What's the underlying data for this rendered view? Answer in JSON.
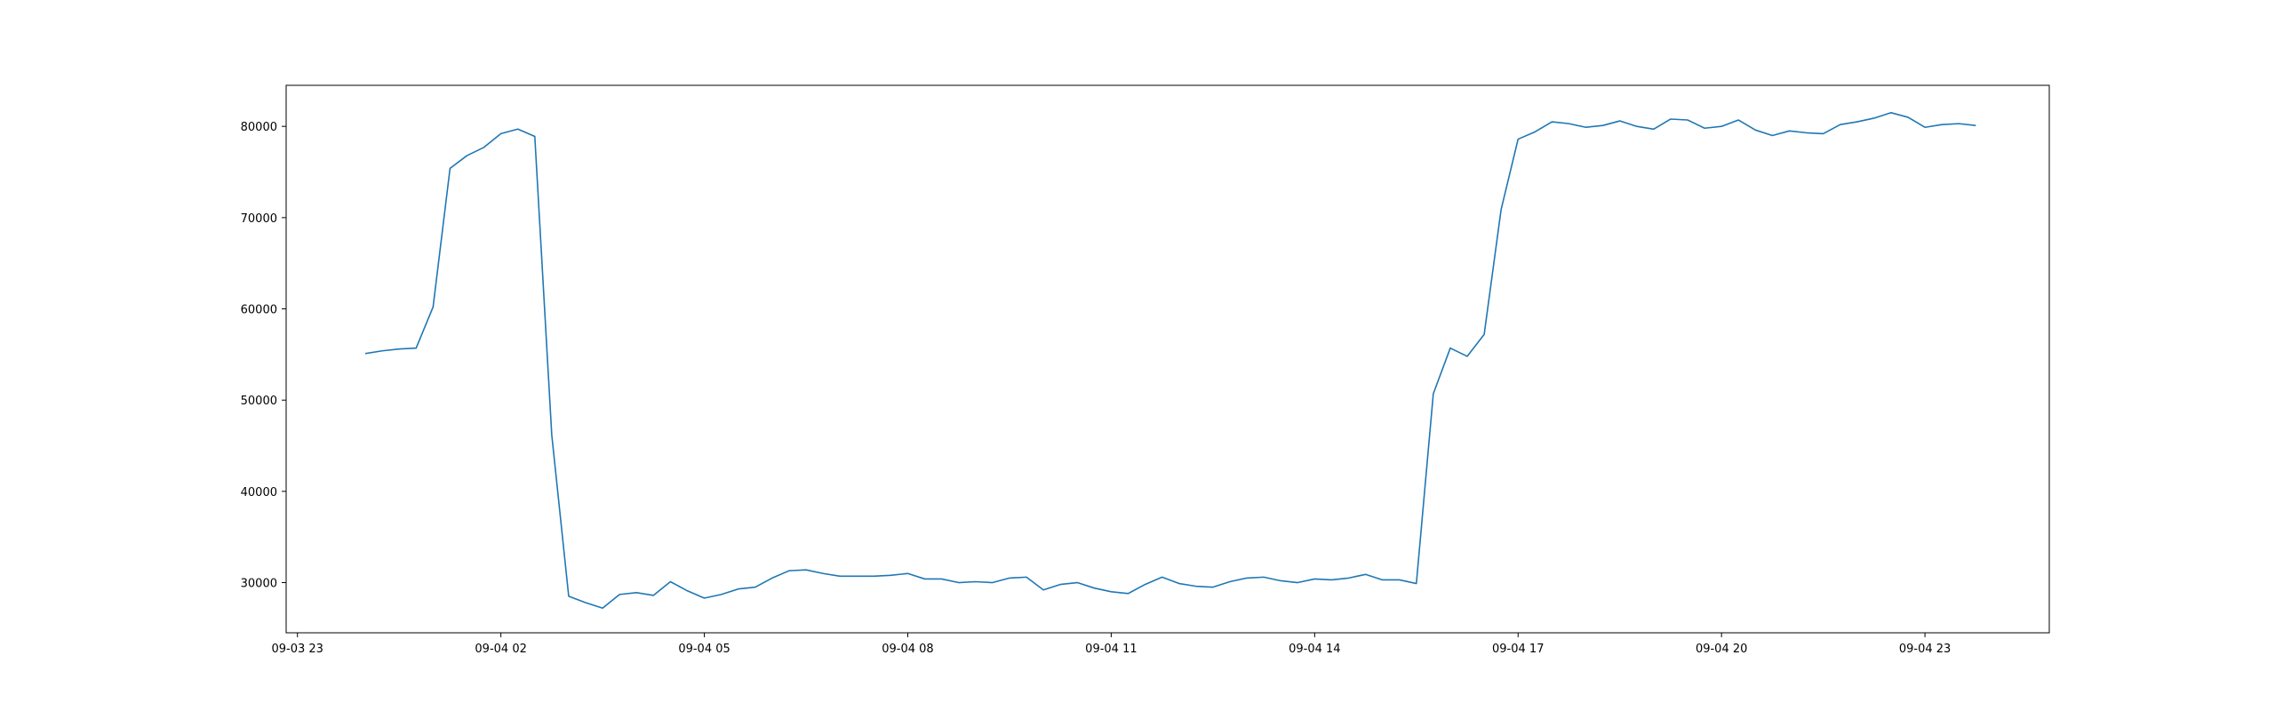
{
  "chart_data": {
    "type": "line",
    "title": "",
    "xlabel": "",
    "ylabel": "",
    "grid": false,
    "legend": "none",
    "x_ticks": [
      "09-03 23",
      "09-04 02",
      "09-04 05",
      "09-04 08",
      "09-04 11",
      "09-04 14",
      "09-04 17",
      "09-04 20",
      "09-04 23"
    ],
    "y_ticks": [
      30000,
      40000,
      50000,
      60000,
      70000,
      80000
    ],
    "xlim": [
      "2023-09-03 22:50",
      "2023-09-05 00:50"
    ],
    "ylim": [
      24500,
      84500
    ],
    "series": [
      {
        "color": "#1f77b4",
        "x": [
          "2023-09-04 00:00",
          "2023-09-04 00:15",
          "2023-09-04 00:30",
          "2023-09-04 00:45",
          "2023-09-04 01:00",
          "2023-09-04 01:15",
          "2023-09-04 01:30",
          "2023-09-04 01:45",
          "2023-09-04 02:00",
          "2023-09-04 02:15",
          "2023-09-04 02:30",
          "2023-09-04 02:45",
          "2023-09-04 03:00",
          "2023-09-04 03:15",
          "2023-09-04 03:30",
          "2023-09-04 03:45",
          "2023-09-04 04:00",
          "2023-09-04 04:15",
          "2023-09-04 04:30",
          "2023-09-04 04:45",
          "2023-09-04 05:00",
          "2023-09-04 05:15",
          "2023-09-04 05:30",
          "2023-09-04 05:45",
          "2023-09-04 06:00",
          "2023-09-04 06:15",
          "2023-09-04 06:30",
          "2023-09-04 06:45",
          "2023-09-04 07:00",
          "2023-09-04 07:15",
          "2023-09-04 07:30",
          "2023-09-04 07:45",
          "2023-09-04 08:00",
          "2023-09-04 08:15",
          "2023-09-04 08:30",
          "2023-09-04 08:45",
          "2023-09-04 09:00",
          "2023-09-04 09:15",
          "2023-09-04 09:30",
          "2023-09-04 09:45",
          "2023-09-04 10:00",
          "2023-09-04 10:15",
          "2023-09-04 10:30",
          "2023-09-04 10:45",
          "2023-09-04 11:00",
          "2023-09-04 11:15",
          "2023-09-04 11:30",
          "2023-09-04 11:45",
          "2023-09-04 12:00",
          "2023-09-04 12:15",
          "2023-09-04 12:30",
          "2023-09-04 12:45",
          "2023-09-04 13:00",
          "2023-09-04 13:15",
          "2023-09-04 13:30",
          "2023-09-04 13:45",
          "2023-09-04 14:00",
          "2023-09-04 14:15",
          "2023-09-04 14:30",
          "2023-09-04 14:45",
          "2023-09-04 15:00",
          "2023-09-04 15:15",
          "2023-09-04 15:30",
          "2023-09-04 15:45",
          "2023-09-04 16:00",
          "2023-09-04 16:15",
          "2023-09-04 16:30",
          "2023-09-04 16:45",
          "2023-09-04 17:00",
          "2023-09-04 17:15",
          "2023-09-04 17:30",
          "2023-09-04 17:45",
          "2023-09-04 18:00",
          "2023-09-04 18:15",
          "2023-09-04 18:30",
          "2023-09-04 18:45",
          "2023-09-04 19:00",
          "2023-09-04 19:15",
          "2023-09-04 19:30",
          "2023-09-04 19:45",
          "2023-09-04 20:00",
          "2023-09-04 20:15",
          "2023-09-04 20:30",
          "2023-09-04 20:45",
          "2023-09-04 21:00",
          "2023-09-04 21:15",
          "2023-09-04 21:30",
          "2023-09-04 21:45",
          "2023-09-04 22:00",
          "2023-09-04 22:15",
          "2023-09-04 22:30",
          "2023-09-04 22:45",
          "2023-09-04 23:00",
          "2023-09-04 23:15",
          "2023-09-04 23:30",
          "2023-09-04 23:45"
        ],
        "y": [
          55100,
          55400,
          55600,
          55700,
          60200,
          75400,
          76800,
          77700,
          79200,
          79700,
          78900,
          46200,
          28500,
          27800,
          27200,
          28700,
          28900,
          28600,
          30100,
          29100,
          28300,
          28700,
          29300,
          29500,
          30500,
          31300,
          31400,
          31000,
          30700,
          30700,
          30700,
          30800,
          31000,
          30400,
          30400,
          30000,
          30100,
          30000,
          30500,
          30600,
          29200,
          29800,
          30000,
          29400,
          29000,
          28800,
          29800,
          30600,
          29900,
          29600,
          29500,
          30100,
          30500,
          30600,
          30200,
          30000,
          30400,
          30300,
          30500,
          30900,
          30300,
          30300,
          29900,
          50700,
          55700,
          54800,
          57200,
          70900,
          78600,
          79400,
          80500,
          80300,
          79900,
          80100,
          80600,
          80000,
          79700,
          80800,
          80700,
          79800,
          80000,
          80700,
          79600,
          79000,
          79500,
          79300,
          79200,
          80200,
          80500,
          80900,
          81500,
          81000,
          79900,
          80200,
          80300,
          80100
        ]
      }
    ]
  }
}
